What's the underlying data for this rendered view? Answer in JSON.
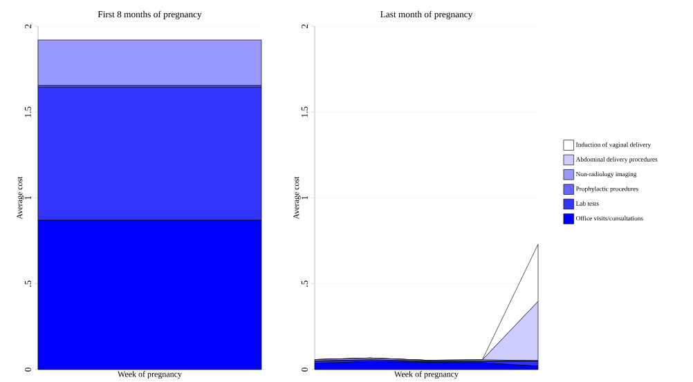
{
  "chart_data": [
    {
      "type": "bar",
      "title": "First 8 months of pregnancy",
      "xlabel": "Week of pregnancy",
      "ylabel": "Average cost",
      "categories": [
        null
      ],
      "stacked": true,
      "grid": "y",
      "ylim": [
        0,
        2
      ],
      "yticks": [
        0,
        {
          "value": 0.5,
          "label": ".5"
        },
        1,
        1.5,
        2
      ],
      "series": [
        {
          "color": "#0000ff",
          "values": [
            0.87
          ]
        },
        {
          "color": "#3333ff",
          "values": [
            0.775
          ]
        },
        {
          "color": "#6666ff",
          "values": [
            0.01
          ]
        },
        {
          "color": "#9999ff",
          "values": [
            0.265
          ]
        },
        {
          "color": "#ccccff",
          "values": [
            0
          ]
        },
        {
          "color": "#ffffff",
          "values": [
            0
          ]
        }
      ]
    },
    {
      "type": "area",
      "title": "Last month of pregnancy",
      "xlabel": "Week of pregnancy",
      "ylabel": "Average cost",
      "categories": [
        null,
        null,
        null,
        null,
        null
      ],
      "stacked": true,
      "grid": "y",
      "legend": "right",
      "ylim": [
        0,
        2
      ],
      "yticks": [
        0,
        {
          "value": 0.5,
          "label": ".5"
        },
        1,
        1.5,
        2
      ],
      "series": [
        {
          "name": "Office visits/consultations",
          "color": "#0000ff",
          "values": [
            0.037,
            0.047,
            0.042,
            0.04,
            0.02
          ]
        },
        {
          "name": "Lab tests",
          "color": "#3333ff",
          "values": [
            0.011,
            0.008,
            0.005,
            0.006,
            0.028
          ]
        },
        {
          "name": "Prophylactic procedures",
          "color": "#6666ff",
          "values": [
            0.002,
            0.002,
            0.002,
            0.002,
            0.002
          ]
        },
        {
          "name": "Non-radiology imaging",
          "color": "#9999ff",
          "values": [
            0.008,
            0.01,
            0.005,
            0.008,
            0.002
          ]
        },
        {
          "name": "Abdominal delivery procedures",
          "color": "#ccccff",
          "values": [
            0,
            0,
            0,
            0,
            0.345
          ]
        },
        {
          "name": "Induction of vaginal delivery",
          "color": "#ffffff",
          "values": [
            0,
            0,
            0,
            0,
            0.333
          ]
        }
      ]
    }
  ]
}
